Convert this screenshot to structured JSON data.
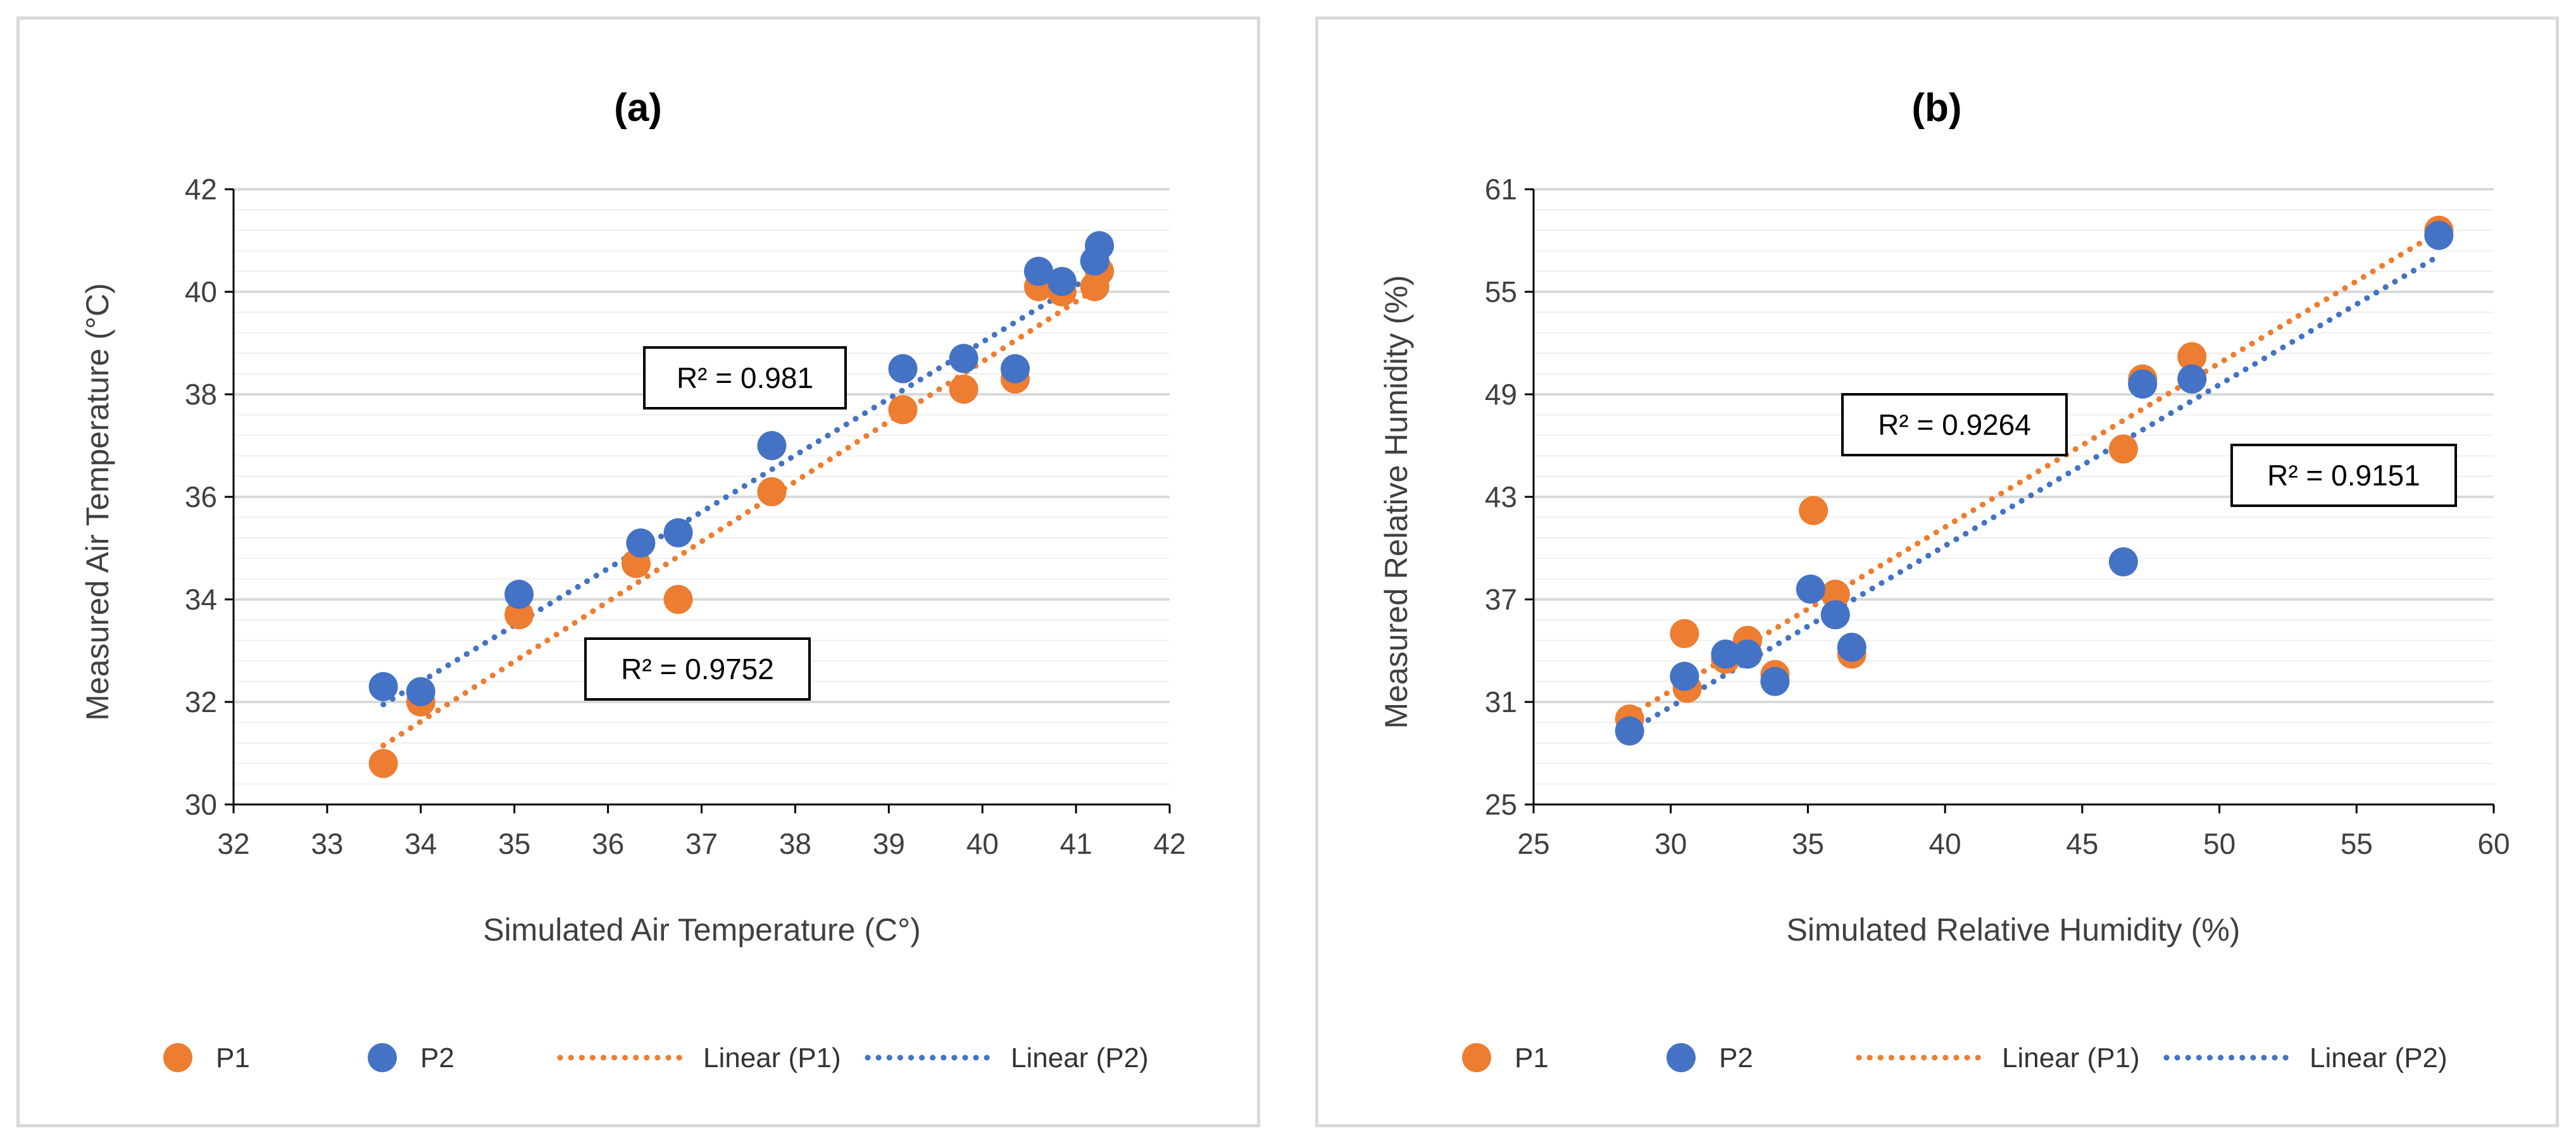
{
  "chart_data": [
    {
      "type": "scatter",
      "title": "(a)",
      "xlabel": "Simulated Air Temperature (C°)",
      "ylabel": "Measured Air Temperature (°C)",
      "xlim": [
        32,
        42
      ],
      "ylim": [
        30,
        42
      ],
      "xticks": [
        32,
        33,
        34,
        35,
        36,
        37,
        38,
        39,
        40,
        41,
        42
      ],
      "yticks": [
        30,
        32,
        34,
        36,
        38,
        40,
        42
      ],
      "grid": true,
      "legend_position": "bottom",
      "series": [
        {
          "name": "P1",
          "color": "#ED7D31",
          "points": [
            [
              33.6,
              30.8
            ],
            [
              34.0,
              32.0
            ],
            [
              35.05,
              33.7
            ],
            [
              36.3,
              34.7
            ],
            [
              36.75,
              34.0
            ],
            [
              37.75,
              36.1
            ],
            [
              39.15,
              37.7
            ],
            [
              39.8,
              38.1
            ],
            [
              40.35,
              38.3
            ],
            [
              40.6,
              40.1
            ],
            [
              40.85,
              40.0
            ],
            [
              41.2,
              40.1
            ],
            [
              41.25,
              40.4
            ]
          ]
        },
        {
          "name": "P2",
          "color": "#4472C4",
          "points": [
            [
              33.6,
              32.3
            ],
            [
              34.0,
              32.2
            ],
            [
              35.05,
              34.1
            ],
            [
              36.35,
              35.1
            ],
            [
              36.75,
              35.3
            ],
            [
              37.75,
              37.0
            ],
            [
              39.15,
              38.5
            ],
            [
              39.8,
              38.7
            ],
            [
              40.35,
              38.5
            ],
            [
              40.6,
              40.4
            ],
            [
              40.85,
              40.2
            ],
            [
              41.2,
              40.6
            ],
            [
              41.25,
              40.9
            ]
          ]
        }
      ],
      "trendlines": [
        {
          "name": "Linear (P1)",
          "color": "#ED7D31",
          "x": [
            33.6,
            41.25
          ],
          "y": [
            31.15,
            40.1
          ]
        },
        {
          "name": "Linear (P2)",
          "color": "#4472C4",
          "x": [
            33.6,
            41.25
          ],
          "y": [
            31.95,
            40.4
          ]
        }
      ],
      "annotations": [
        {
          "text": "R² = 0.981",
          "series": "P2"
        },
        {
          "text": "R² = 0.9752",
          "series": "P1"
        }
      ],
      "legend": [
        "P1",
        "P2",
        "Linear (P1)",
        "Linear (P2)"
      ]
    },
    {
      "type": "scatter",
      "title": "(b)",
      "xlabel": "Simulated Relative Humidity (%)",
      "ylabel": "Measured Relative Humidity (%)",
      "xlim": [
        25,
        60
      ],
      "ylim": [
        25,
        61
      ],
      "xticks": [
        25,
        30,
        35,
        40,
        45,
        50,
        55,
        60
      ],
      "yticks": [
        25,
        31,
        37,
        43,
        49,
        55,
        61
      ],
      "grid": true,
      "legend_position": "bottom",
      "series": [
        {
          "name": "P1",
          "color": "#ED7D31",
          "points": [
            [
              28.5,
              30.0
            ],
            [
              30.5,
              35.0
            ],
            [
              30.6,
              31.8
            ],
            [
              32.0,
              33.5
            ],
            [
              32.8,
              34.6
            ],
            [
              33.8,
              32.6
            ],
            [
              35.2,
              42.2
            ],
            [
              36.0,
              37.3
            ],
            [
              36.6,
              33.8
            ],
            [
              46.5,
              45.8
            ],
            [
              47.2,
              49.9
            ],
            [
              49.0,
              51.2
            ],
            [
              58.0,
              58.6
            ]
          ]
        },
        {
          "name": "P2",
          "color": "#4472C4",
          "points": [
            [
              28.5,
              29.3
            ],
            [
              30.5,
              32.5
            ],
            [
              32.0,
              33.8
            ],
            [
              32.8,
              33.8
            ],
            [
              33.8,
              32.2
            ],
            [
              35.1,
              37.6
            ],
            [
              36.0,
              36.1
            ],
            [
              36.6,
              34.2
            ],
            [
              46.5,
              39.2
            ],
            [
              47.2,
              49.6
            ],
            [
              49.0,
              49.9
            ],
            [
              58.0,
              58.3
            ]
          ]
        }
      ],
      "trendlines": [
        {
          "name": "Linear (P1)",
          "color": "#ED7D31",
          "x": [
            28.5,
            58.0
          ],
          "y": [
            30.2,
            58.5
          ]
        },
        {
          "name": "Linear (P2)",
          "color": "#4472C4",
          "x": [
            28.5,
            58.0
          ],
          "y": [
            29.3,
            57.1
          ]
        }
      ],
      "annotations": [
        {
          "text": "R² = 0.9264",
          "series": "P1"
        },
        {
          "text": "R² = 0.9151",
          "series": "P2"
        }
      ],
      "legend": [
        "P1",
        "P2",
        "Linear (P1)",
        "Linear (P2)"
      ]
    }
  ]
}
